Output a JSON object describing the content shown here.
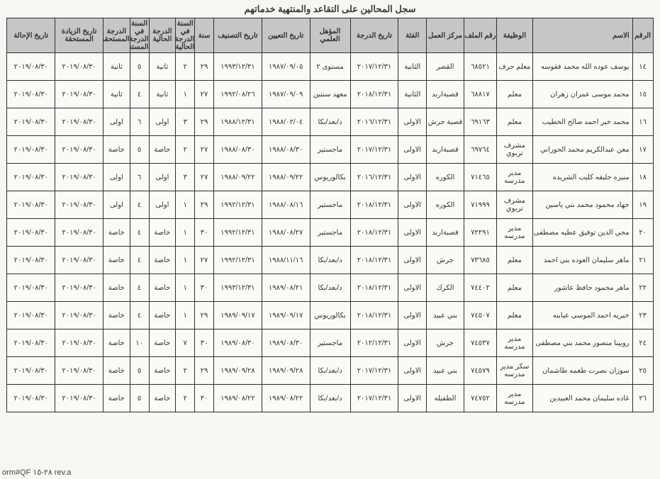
{
  "title": "سجل المحالين على التقاعد والمنتهية خدماتهم",
  "form_ref": "orm#QF ٢٨-١٥ rev.a",
  "headers": {
    "idx": "الرقم",
    "name": "الاسم",
    "job": "الوظيفة",
    "file": "رقم الملف",
    "center": "مركز العمل",
    "cat": "الفئة",
    "grade_date": "تاريخ الدرجة",
    "qual": "المؤهل العلمي",
    "appoint": "تاريخ التعيين",
    "class_date": "تاريخ التصنيف",
    "year": "سنة",
    "class_yr": "السنة في الدرجة الحالية",
    "grade_cur": "الدرجة الحالية",
    "grade_yr": "السنة في الدرجة المستحقة",
    "grade_due": "الدرجة المستحقة",
    "raise": "تاريخ الزيادة المستحقة",
    "refer": "تاريخ الإحالة"
  },
  "rows": [
    {
      "idx": "١٤",
      "name": "يوسف عوده الله محمد فقوسه",
      "job": "معلم حرف",
      "file": "٦٨٥٢١",
      "center": "القصر",
      "cat": "الثانية",
      "grade_date": "٢٠١٧/١٢/٣١",
      "qual": "مستوى ٢",
      "appoint": "١٩٨٧/٠٩/٠٥",
      "class_date": "١٩٩٣/١٢/٣١",
      "year": "٢٩",
      "class_yr": "٢",
      "grade_cur": "ثانية",
      "grade_yr": "٥",
      "grade_due": "ثانية",
      "raise": "٢٠١٩/٠٨/٣٠",
      "refer": "٢٠١٩/٠٨/٣٠"
    },
    {
      "idx": "١٥",
      "name": "محمد موسى عمران زهران",
      "job": "معلم",
      "file": "٦٨٨١٧",
      "center": "قصبةاربد",
      "cat": "الثانية",
      "grade_date": "٢٠١٨/١٢/٣١",
      "qual": "معهد سنتين",
      "appoint": "١٩٨٧/٠٩/٠٩",
      "class_date": "١٩٩٢/٠٨/٢٦",
      "year": "٢٧",
      "class_yr": "١",
      "grade_cur": "ثانية",
      "grade_yr": "٤",
      "grade_due": "ثانية",
      "raise": "٢٠١٩/٠٨/٣٠",
      "refer": "٢٠١٩/٠٨/٣٠"
    },
    {
      "idx": "١٦",
      "name": "محمد خير احمد صالح الخطيب",
      "job": "معلم",
      "file": "٦٩١٦٣",
      "center": "قصبة جرش",
      "cat": "الاولى",
      "grade_date": "٢٠١٦/١٢/٣١",
      "qual": "د/بعد/بكا",
      "appoint": "١٩٨٨/٠٢/٠٤",
      "class_date": "١٩٨٨/١٢/٣١",
      "year": "٢٩",
      "class_yr": "٣",
      "grade_cur": "اولى",
      "grade_yr": "٦",
      "grade_due": "اولى",
      "raise": "٢٠١٩/٠٨/٣٠",
      "refer": "٢٠١٩/٠٨/٣٠"
    },
    {
      "idx": "١٧",
      "name": "معن عبدالكريم محمد الحوراني",
      "job": "مشرف تربوي",
      "file": "٦٩٧٦٤",
      "center": "قصبةاربد",
      "cat": "الاولى",
      "grade_date": "٢٠١٧/١٢/٣١",
      "qual": "ماجستير",
      "appoint": "١٩٨٨/٠٨/٣٠",
      "class_date": "١٩٨٨/٠٨/٣٠",
      "year": "٢٧",
      "class_yr": "٢",
      "grade_cur": "خاصة",
      "grade_yr": "٥",
      "grade_due": "خاصة",
      "raise": "٢٠١٩/٠٨/٣٠",
      "refer": "٢٠١٩/٠٨/٣٠"
    },
    {
      "idx": "١٨",
      "name": "منيره خليفه كليب الشريده",
      "job": "مدير مدرسه",
      "file": "٧١٤٦٥",
      "center": "الكوره",
      "cat": "الاولى",
      "grade_date": "٢٠١٦/١٢/٣١",
      "qual": "بكالوريوس",
      "appoint": "١٩٨٨/٠٩/٢٢",
      "class_date": "١٩٨٨/٠٩/٢٢",
      "year": "٢٧",
      "class_yr": "٣",
      "grade_cur": "اولى",
      "grade_yr": "٦",
      "grade_due": "اولى",
      "raise": "٢٠١٩/٠٨/٣٠",
      "refer": "٢٠١٩/٠٨/٣٠"
    },
    {
      "idx": "١٩",
      "name": "جهاد محمود محمد بني ياسين",
      "job": "مشرف تربوي",
      "file": "٧١٩٩٩",
      "center": "الكوره",
      "cat": "الاولى",
      "grade_date": "٢٠١٨/١٢/٣١",
      "qual": "ماجستير",
      "appoint": "١٩٨٨/٠٨/١٦",
      "class_date": "١٩٩٢/١٢/٣١",
      "year": "٢٩",
      "class_yr": "١",
      "grade_cur": "اولى",
      "grade_yr": "٤",
      "grade_due": "اولى",
      "raise": "٢٠١٩/٠٨/٣٠",
      "refer": "٢٠١٩/٠٨/٣٠"
    },
    {
      "idx": "٢٠",
      "name": "محي الدين توفيق عطيه مصطفى",
      "job": "مدير مدرسه",
      "file": "٧٢٢٩١",
      "center": "قصبةاربد",
      "cat": "الاولى",
      "grade_date": "٢٠١٨/١٢/٣١",
      "qual": "ماجستير",
      "appoint": "١٩٨٨/٠٨/٢٧",
      "class_date": "١٩٩٢/١٢/٣١",
      "year": "٣٠",
      "class_yr": "١",
      "grade_cur": "خاصة",
      "grade_yr": "٤",
      "grade_due": "خاصة",
      "raise": "٢٠١٩/٠٨/٣٠",
      "refer": "٢٠١٩/٠٨/٣٠"
    },
    {
      "idx": "٢١",
      "name": "ماهر سليمان العوده بني احمد",
      "job": "معلم",
      "file": "٧٣٦٨٥",
      "center": "جرش",
      "cat": "الاولى",
      "grade_date": "٢٠١٨/١٢/٣١",
      "qual": "د/بعد/بكا",
      "appoint": "١٩٨٨/١١/١٦",
      "class_date": "١٩٩٢/١٢/٣١",
      "year": "٢٧",
      "class_yr": "١",
      "grade_cur": "خاصة",
      "grade_yr": "٤",
      "grade_due": "خاصة",
      "raise": "٢٠١٩/٠٨/٣٠",
      "refer": "٢٠١٩/٠٨/٣٠"
    },
    {
      "idx": "٢٢",
      "name": "ماهر محمود حافظ عاشور",
      "job": "معلم",
      "file": "٧٤٤٠٢",
      "center": "الكرك",
      "cat": "الاولى",
      "grade_date": "٢٠١٨/١٢/٣١",
      "qual": "د/بعد/بكا",
      "appoint": "١٩٨٩/٠٨/٢١",
      "class_date": "١٩٩٣/١٢/٣١",
      "year": "٣٠",
      "class_yr": "١",
      "grade_cur": "خاصة",
      "grade_yr": "٤",
      "grade_due": "خاصة",
      "raise": "٢٠١٩/٠٨/٣٠",
      "refer": "٢٠١٩/٠٨/٣٠"
    },
    {
      "idx": "٢٣",
      "name": "خيريه احمد الموسى عبابنه",
      "job": "معلم",
      "file": "٧٤٥٠٧",
      "center": "بني عبيد",
      "cat": "الاولى",
      "grade_date": "٢٠١٨/١٢/٣١",
      "qual": "بكالوريوس",
      "appoint": "١٩٨٩/٠٩/١٧",
      "class_date": "١٩٨٩/٠٩/١٧",
      "year": "٢٩",
      "class_yr": "١",
      "grade_cur": "خاصة",
      "grade_yr": "٤",
      "grade_due": "خاصة",
      "raise": "٢٠١٩/٠٨/٣٠",
      "refer": "٢٠١٩/٠٨/٣٠"
    },
    {
      "idx": "٢٤",
      "name": "روبينا منصور محمد بني مصطفى",
      "job": "مدير مدرسه",
      "file": "٧٤٥٣٧",
      "center": "جرش",
      "cat": "الاولى",
      "grade_date": "٢٠١٢/١٢/٣١",
      "qual": "ماجستير",
      "appoint": "١٩٨٩/٠٨/٣٠",
      "class_date": "١٩٨٩/٠٨/٣٠",
      "year": "٣٠",
      "class_yr": "٧",
      "grade_cur": "خاصة",
      "grade_yr": "١٠",
      "grade_due": "خاصة",
      "raise": "٢٠١٩/٠٨/٣٠",
      "refer": "٢٠١٩/٠٨/٣٠"
    },
    {
      "idx": "٢٥",
      "name": "سوزان نصرت طعمه طاشمان",
      "job": "سكر مدير مدرسه",
      "file": "٧٤٥٧٩",
      "center": "بني عبيد",
      "cat": "الاولى",
      "grade_date": "٢٠١٧/١٢/٣١",
      "qual": "د/بعد/بكا",
      "appoint": "١٩٨٩/٠٩/٢٨",
      "class_date": "١٩٨٩/٠٩/٢٨",
      "year": "٢٩",
      "class_yr": "٢",
      "grade_cur": "خاصة",
      "grade_yr": "٥",
      "grade_due": "خاصة",
      "raise": "٢٠١٩/٠٨/٣٠",
      "refer": "٢٠١٩/٠٨/٣٠"
    },
    {
      "idx": "٢٦",
      "name": "غاده سليمان محمد العبيدين",
      "job": "مدير مدرسه",
      "file": "٧٤٧٥٢",
      "center": "الطفيله",
      "cat": "الاولى",
      "grade_date": "٢٠١٧/١٢/٣١",
      "qual": "د/بعد/بكا",
      "appoint": "١٩٨٩/٠٨/٢٢",
      "class_date": "١٩٨٩/٠٨/٢٢",
      "year": "٣٠",
      "class_yr": "٢",
      "grade_cur": "خاصة",
      "grade_yr": "٥",
      "grade_due": "خاصة",
      "raise": "٢٠١٩/٠٨/٣٠",
      "refer": "٢٠١٩/٠٨/٣٠"
    }
  ],
  "cols": [
    "idx",
    "name",
    "job",
    "file",
    "center",
    "cat",
    "grade_date",
    "qual",
    "appoint",
    "class_date",
    "year",
    "class_yr",
    "grade_cur",
    "grade_yr",
    "grade_due",
    "raise",
    "refer"
  ],
  "col_classes": {
    "idx": "col-idx",
    "name": "col-name",
    "job": "col-job",
    "file": "col-file",
    "center": "col-center",
    "cat": "col-cat",
    "grade_date": "col-date",
    "qual": "col-qual",
    "appoint": "col-date",
    "class_date": "col-date",
    "year": "col-num",
    "class_yr": "col-num",
    "grade_cur": "col-grade",
    "grade_yr": "col-num",
    "grade_due": "col-grade",
    "raise": "col-date",
    "refer": "col-date"
  }
}
